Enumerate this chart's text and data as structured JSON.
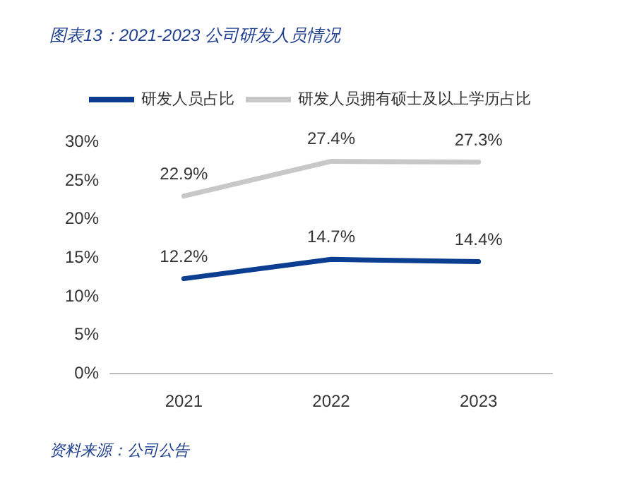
{
  "chart_data": {
    "type": "line",
    "title": "图表13：2021-2023 公司研发人员情况",
    "categories": [
      "2021",
      "2022",
      "2023"
    ],
    "series": [
      {
        "name": "研发人员占比",
        "color": "#0b3d91",
        "values": [
          12.2,
          14.7,
          14.4
        ]
      },
      {
        "name": "研发人员拥有硕士及以上学历占比",
        "color": "#c8c8c8",
        "values": [
          22.9,
          27.4,
          27.3
        ]
      }
    ],
    "value_labels": [
      [
        "12.2%",
        "14.7%",
        "14.4%"
      ],
      [
        "22.9%",
        "27.4%",
        "27.3%"
      ]
    ],
    "ylim": [
      0,
      30
    ],
    "yticks": [
      {
        "value": 0,
        "label": "0%"
      },
      {
        "value": 5,
        "label": "5%"
      },
      {
        "value": 10,
        "label": "10%"
      },
      {
        "value": 15,
        "label": "15%"
      },
      {
        "value": 20,
        "label": "20%"
      },
      {
        "value": 25,
        "label": "25%"
      },
      {
        "value": 30,
        "label": "30%"
      }
    ],
    "grid": false,
    "legend": "top",
    "marker": "none",
    "line_style": "solid",
    "annotations": [
      "资料来源：公司公告"
    ]
  }
}
